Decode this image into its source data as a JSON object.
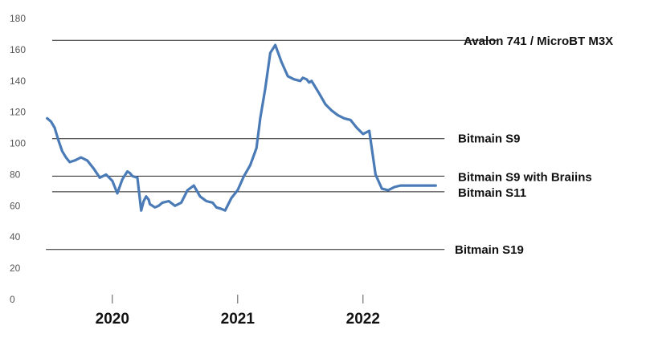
{
  "chart_data": {
    "type": "line",
    "title": "",
    "xlabel": "",
    "ylabel": "",
    "ylim": [
      0,
      180
    ],
    "xlim": [
      2019.45,
      2023.1
    ],
    "grid": false,
    "legend": "none",
    "y_ticks": [
      "0",
      "20",
      "40",
      "60",
      "80",
      "100",
      "120",
      "140",
      "160",
      "180"
    ],
    "y_tick_values": [
      0,
      20,
      40,
      60,
      80,
      100,
      120,
      140,
      160,
      180
    ],
    "x_ticks": [
      {
        "label": "2020",
        "value": 2020.0
      },
      {
        "label": "2021",
        "value": 2021.0
      },
      {
        "label": "2022",
        "value": 2022.0
      }
    ],
    "reference_lines": [
      {
        "label": "Avalon 741 / MicroBT M3X",
        "value": 166,
        "x_start": 2019.52,
        "x_end": 2023.08
      },
      {
        "label": "Bitmain S9",
        "value": 103,
        "x_start": 2019.52,
        "x_end": 2022.65
      },
      {
        "label": "Bitmain S9 with Braiins",
        "value": 79,
        "x_start": 2019.52,
        "x_end": 2022.65
      },
      {
        "label": "Bitmain S11",
        "value": 69,
        "x_start": 2019.52,
        "x_end": 2022.65
      },
      {
        "label": "Bitmain S19",
        "value": 32,
        "x_start": 2019.47,
        "x_end": 2022.65
      }
    ],
    "series": [
      {
        "color": "#4a7bb7",
        "x": [
          2019.48,
          2019.51,
          2019.54,
          2019.57,
          2019.6,
          2019.63,
          2019.66,
          2019.7,
          2019.75,
          2019.8,
          2019.85,
          2019.9,
          2019.95,
          2020.0,
          2020.04,
          2020.08,
          2020.12,
          2020.14,
          2020.16,
          2020.2,
          2020.23,
          2020.25,
          2020.27,
          2020.29,
          2020.3,
          2020.32,
          2020.34,
          2020.37,
          2020.4,
          2020.45,
          2020.5,
          2020.55,
          2020.6,
          2020.65,
          2020.7,
          2020.75,
          2020.8,
          2020.83,
          2020.87,
          2020.9,
          2020.95,
          2021.0,
          2021.05,
          2021.1,
          2021.15,
          2021.18,
          2021.22,
          2021.26,
          2021.3,
          2021.35,
          2021.4,
          2021.45,
          2021.5,
          2021.52,
          2021.55,
          2021.57,
          2021.59,
          2021.62,
          2021.65,
          2021.7,
          2021.75,
          2021.8,
          2021.85,
          2021.9,
          2021.95,
          2022.0,
          2022.05,
          2022.1,
          2022.15,
          2022.2,
          2022.25,
          2022.3,
          2022.35,
          2022.4,
          2022.45,
          2022.48,
          2022.5,
          2022.51,
          2022.53,
          2022.56,
          2022.58
        ],
        "values": [
          116,
          114,
          110,
          102,
          95,
          91,
          88,
          89,
          91,
          89,
          84,
          78,
          80,
          76,
          68,
          77,
          82,
          81,
          79,
          78,
          57,
          63,
          66,
          64,
          61,
          60,
          59,
          60,
          62,
          63,
          60,
          62,
          70,
          73,
          66,
          63,
          62,
          59,
          58,
          57,
          65,
          70,
          79,
          86,
          97,
          116,
          135,
          158,
          163,
          152,
          143,
          141,
          140,
          142,
          141,
          139,
          140,
          136,
          132,
          125,
          121,
          118,
          116,
          115,
          110,
          106,
          108,
          80,
          71,
          70,
          72,
          73,
          73,
          73,
          73,
          73,
          73,
          73,
          73,
          73,
          73
        ]
      }
    ]
  }
}
